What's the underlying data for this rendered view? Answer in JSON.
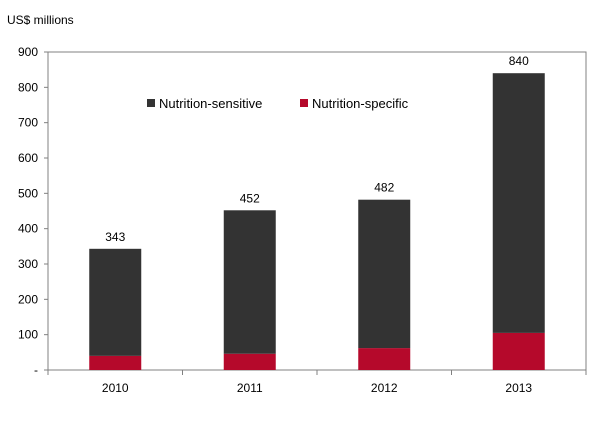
{
  "chart_data": {
    "type": "bar",
    "stacked": true,
    "unit_label": "US$ millions",
    "categories": [
      "2010",
      "2011",
      "2012",
      "2013"
    ],
    "series": [
      {
        "name": "Nutrition-specific",
        "color": "#b5092b",
        "values": [
          40,
          46,
          62,
          105
        ]
      },
      {
        "name": "Nutrition-sensitive",
        "color": "#333333",
        "values": [
          303,
          406,
          420,
          735
        ]
      }
    ],
    "totals": [
      343,
      452,
      482,
      840
    ],
    "y_ticks": [
      "-",
      "100",
      "200",
      "300",
      "400",
      "500",
      "600",
      "700",
      "800",
      "900"
    ],
    "ylim": [
      0,
      900
    ],
    "grid": false,
    "legend_position": "top-left"
  }
}
